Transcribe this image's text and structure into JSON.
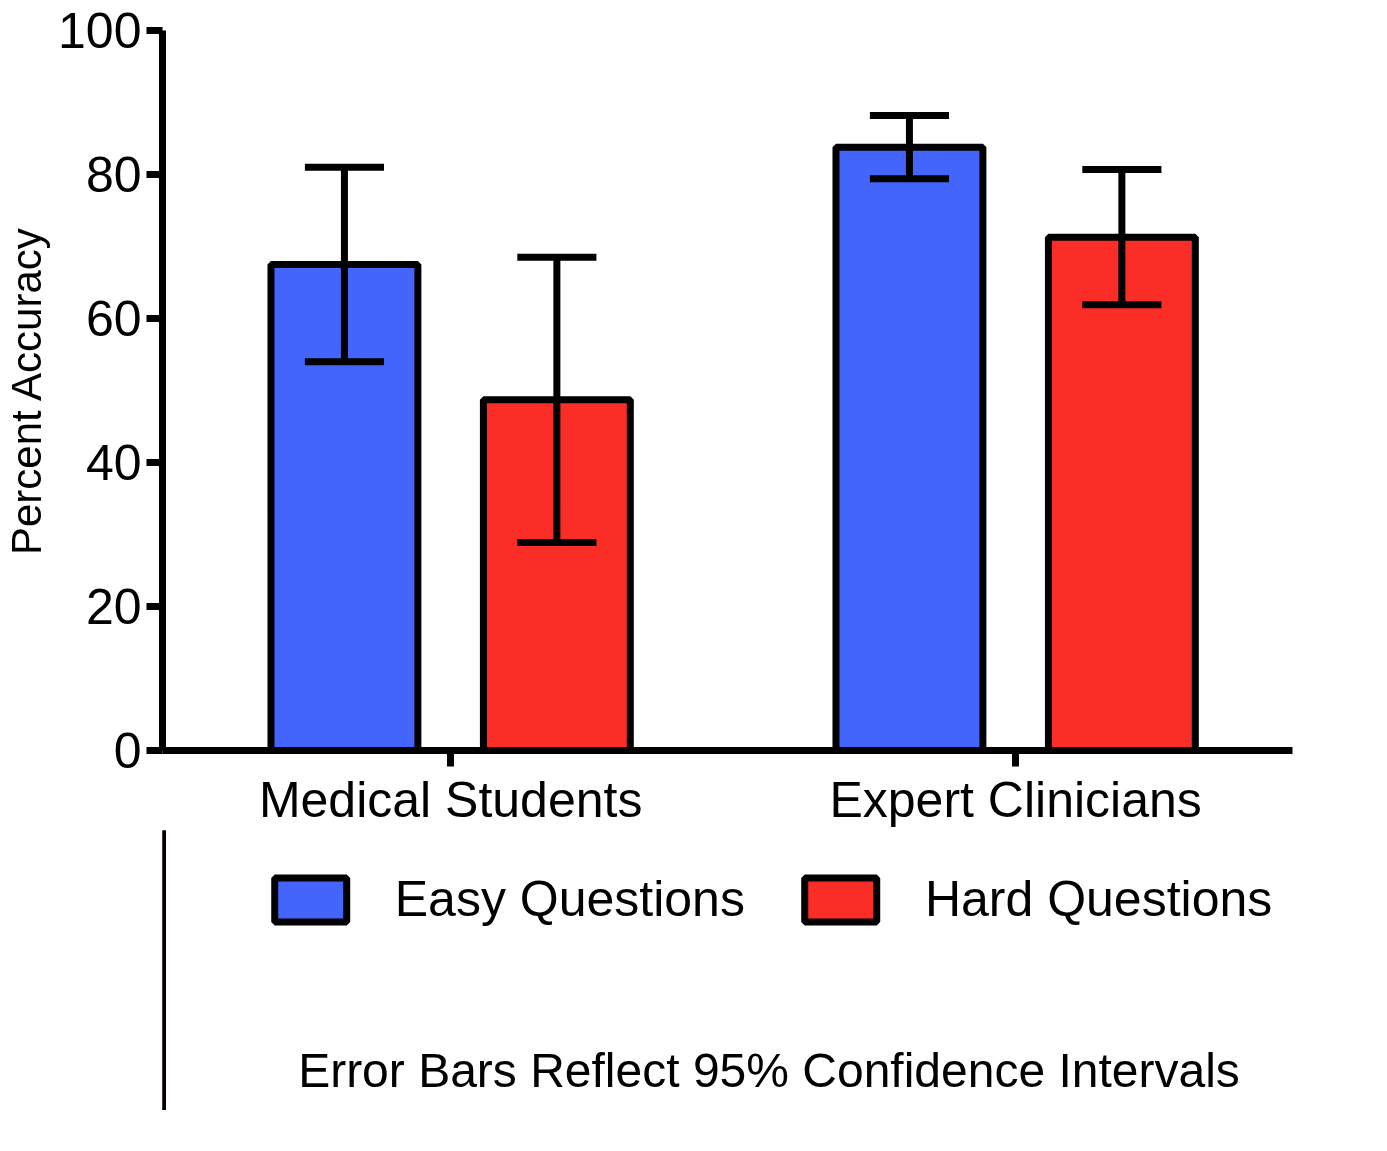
{
  "chart_data": {
    "type": "bar",
    "ylabel": "Percent Accuracy",
    "categories": [
      "Medical Students",
      "Expert Clinicians"
    ],
    "series": [
      {
        "name": "Easy Questions",
        "color": "#4365fb",
        "values": [
          67.5,
          83.8
        ],
        "errors": [
          13.5,
          4.4
        ]
      },
      {
        "name": "Hard Questions",
        "color": "#fb2d27",
        "values": [
          48.7,
          71.3
        ],
        "errors": [
          19.8,
          9.4
        ]
      }
    ],
    "ylim": [
      0,
      100
    ],
    "yticks": [
      0,
      20,
      40,
      60,
      80,
      100
    ],
    "grid": false,
    "legend": "bottom",
    "annotations": [
      "Error Bars Reflect 95% Confidence Intervals"
    ]
  }
}
